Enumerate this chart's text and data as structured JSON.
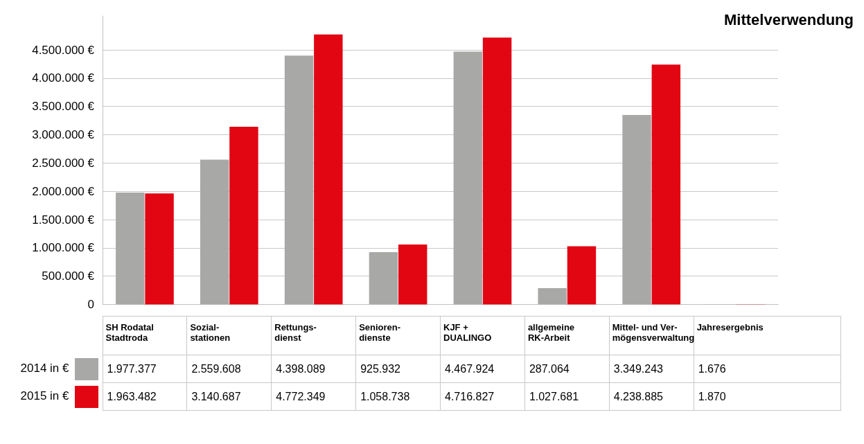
{
  "chart_data": {
    "type": "bar",
    "title": "Mittelverwendung",
    "categories": [
      "SH Rodatal\nStadtroda",
      "Sozial-\nstationen",
      "Rettungs-\ndienst",
      "Senioren-\ndienste",
      "KJF +\nDUALINGO",
      "allgemeine\nRK-Arbeit",
      "Mittel- und Ver-\nmögensverwaltung",
      "Jahresergebnis"
    ],
    "series": [
      {
        "name": "2014 in €",
        "color": "#a8a8a7",
        "values": [
          1977377,
          2559608,
          4398089,
          925932,
          4467924,
          287064,
          3349243,
          1676
        ],
        "value_labels": [
          "1.977.377",
          "2.559.608",
          "4.398.089",
          "925.932",
          "4.467.924",
          "287.064",
          "3.349.243",
          "1.676"
        ]
      },
      {
        "name": "2015 in €",
        "color": "#e20613",
        "values": [
          1963482,
          3140687,
          4772349,
          1058738,
          4716827,
          1027681,
          4238885,
          1870
        ],
        "value_labels": [
          "1.963.482",
          "3.140.687",
          "4.772.349",
          "1.058.738",
          "4.716.827",
          "1.027.681",
          "4.238.885",
          "1.870"
        ]
      }
    ],
    "ylim": [
      0,
      5100000
    ],
    "yticks": [
      0,
      {
        "value": 500000,
        "label": "500.000 €"
      },
      {
        "value": 1000000,
        "label": "1.000.000 €"
      },
      {
        "value": 1500000,
        "label": "1.500.000 €"
      },
      {
        "value": 2000000,
        "label": "2.000.000 €"
      },
      {
        "value": 2500000,
        "label": "2.500.000 €"
      },
      {
        "value": 3000000,
        "label": "3.000.000 €"
      },
      {
        "value": 3500000,
        "label": "3.500.000 €"
      },
      {
        "value": 4000000,
        "label": "4.000.000 €"
      },
      {
        "value": 4500000,
        "label": "4.500.000 €"
      }
    ],
    "grid": "y",
    "legend": "bottom left"
  }
}
